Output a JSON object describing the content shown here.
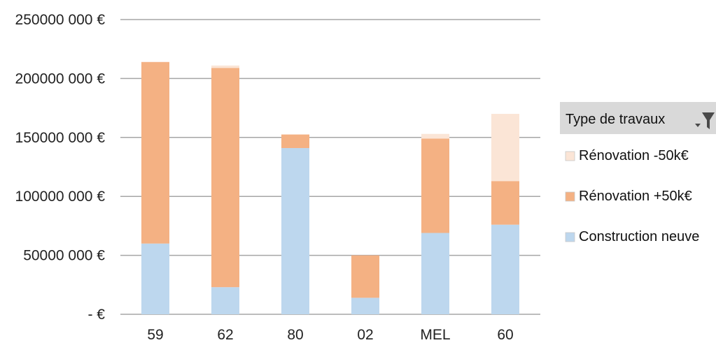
{
  "chart_data": {
    "type": "bar",
    "stacked": true,
    "categories": [
      "59",
      "62",
      "80",
      "02",
      "MEL",
      "60"
    ],
    "y_ticks": [
      "- €",
      "50000 000 €",
      "100000 000 €",
      "150000 000 €",
      "200000 000 €",
      "250000 000 €"
    ],
    "ylim": [
      0,
      250000000
    ],
    "y_step": 50000000,
    "grid": true,
    "legend_placement": "right",
    "legend_title": "Type de travaux",
    "filter_icon": "filter-icon",
    "series": [
      {
        "name": "Construction neuve",
        "color": "#bdd7ee",
        "values": [
          60000000,
          23000000,
          141000000,
          14000000,
          69000000,
          76000000
        ]
      },
      {
        "name": "Rénovation +50k€",
        "color": "#f4b183",
        "values": [
          154000000,
          186000000,
          11500000,
          36000000,
          80000000,
          37000000
        ]
      },
      {
        "name": "Rénovation -50k€",
        "color": "#fbe5d6",
        "values": [
          0,
          2000000,
          0,
          0,
          4000000,
          57000000
        ]
      }
    ]
  }
}
